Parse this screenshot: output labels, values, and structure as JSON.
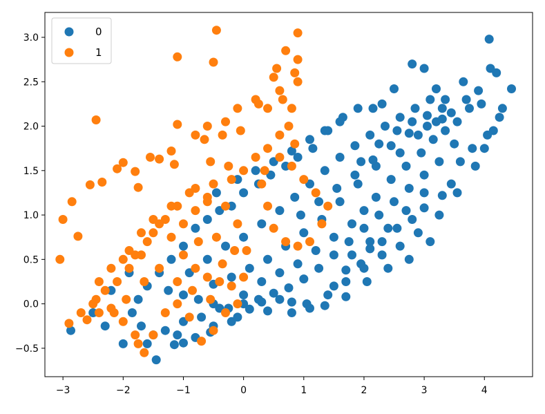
{
  "chart_data": {
    "type": "scatter",
    "title": "",
    "xlabel": "",
    "ylabel": "",
    "xlim": [
      -3.3,
      4.8
    ],
    "ylim": [
      -0.82,
      3.28
    ],
    "xticks": [
      -3,
      -2,
      -1,
      0,
      1,
      2,
      3,
      4
    ],
    "yticks": [
      -0.5,
      0.0,
      0.5,
      1.0,
      1.5,
      2.0,
      2.5,
      3.0
    ],
    "xtick_labels": [
      "−3",
      "−2",
      "−1",
      "0",
      "1",
      "2",
      "3",
      "4"
    ],
    "ytick_labels": [
      "−0.5",
      "0.0",
      "0.5",
      "1.0",
      "1.5",
      "2.0",
      "2.5",
      "3.0"
    ],
    "legend": {
      "placement": "top-left"
    },
    "grid": false,
    "series": [
      {
        "name": "0",
        "color": "#1f77b4",
        "points": [
          [
            -2.87,
            -0.3
          ],
          [
            -1.45,
            -0.63
          ],
          [
            -1.15,
            -0.46
          ],
          [
            -1.0,
            -0.44
          ],
          [
            -0.8,
            -0.38
          ],
          [
            -0.55,
            -0.32
          ],
          [
            -0.2,
            -0.2
          ],
          [
            0.1,
            -0.06
          ],
          [
            0.3,
            0.02
          ],
          [
            0.6,
            0.05
          ],
          [
            0.8,
            0.02
          ],
          [
            1.05,
            0.0
          ],
          [
            1.5,
            0.2
          ],
          [
            1.7,
            0.38
          ],
          [
            1.95,
            0.45
          ],
          [
            2.1,
            0.62
          ],
          [
            2.3,
            0.7
          ],
          [
            2.55,
            0.85
          ],
          [
            2.8,
            0.95
          ],
          [
            3.0,
            1.08
          ],
          [
            3.3,
            1.22
          ],
          [
            3.45,
            1.35
          ],
          [
            3.6,
            1.6
          ],
          [
            3.8,
            1.75
          ],
          [
            4.05,
            1.9
          ],
          [
            4.25,
            2.1
          ],
          [
            4.45,
            2.42
          ],
          [
            4.08,
            2.98
          ],
          [
            4.1,
            2.65
          ],
          [
            4.2,
            2.6
          ],
          [
            3.95,
            2.25
          ],
          [
            3.65,
            2.5
          ],
          [
            3.2,
            2.42
          ],
          [
            3.0,
            2.65
          ],
          [
            2.8,
            2.7
          ],
          [
            2.5,
            2.42
          ],
          [
            2.3,
            2.25
          ],
          [
            2.15,
            2.2
          ],
          [
            1.9,
            2.2
          ],
          [
            1.65,
            2.1
          ],
          [
            1.4,
            1.95
          ],
          [
            1.15,
            1.75
          ],
          [
            0.9,
            1.65
          ],
          [
            0.7,
            1.55
          ],
          [
            0.45,
            1.45
          ],
          [
            0.25,
            1.35
          ],
          [
            0.0,
            1.25
          ],
          [
            -0.2,
            1.1
          ],
          [
            -0.4,
            1.05
          ],
          [
            -0.6,
            0.95
          ],
          [
            -0.8,
            0.85
          ],
          [
            -1.0,
            0.65
          ],
          [
            -1.2,
            0.5
          ],
          [
            -1.4,
            0.35
          ],
          [
            -1.6,
            0.2
          ],
          [
            -1.75,
            0.05
          ],
          [
            -1.85,
            -0.1
          ],
          [
            -1.7,
            -0.25
          ],
          [
            -1.5,
            -0.35
          ],
          [
            -1.3,
            -0.3
          ],
          [
            -1.0,
            -0.2
          ],
          [
            -0.7,
            -0.15
          ],
          [
            -0.4,
            -0.05
          ],
          [
            0.0,
            0.1
          ],
          [
            0.3,
            0.25
          ],
          [
            0.6,
            0.35
          ],
          [
            0.9,
            0.45
          ],
          [
            1.2,
            0.6
          ],
          [
            1.5,
            0.75
          ],
          [
            1.8,
            0.9
          ],
          [
            2.0,
            1.05
          ],
          [
            2.2,
            1.2
          ],
          [
            2.45,
            1.4
          ],
          [
            2.7,
            1.55
          ],
          [
            2.95,
            1.7
          ],
          [
            3.15,
            1.85
          ],
          [
            3.35,
            1.95
          ],
          [
            3.55,
            2.05
          ],
          [
            3.75,
            2.2
          ],
          [
            3.5,
            1.8
          ],
          [
            3.25,
            1.6
          ],
          [
            3.0,
            1.45
          ],
          [
            2.75,
            1.3
          ],
          [
            2.5,
            1.15
          ],
          [
            2.25,
            1.0
          ],
          [
            2.0,
            0.85
          ],
          [
            1.75,
            0.7
          ],
          [
            1.5,
            0.55
          ],
          [
            1.25,
            0.4
          ],
          [
            1.0,
            0.28
          ],
          [
            0.75,
            0.18
          ],
          [
            0.5,
            0.12
          ],
          [
            0.25,
            0.05
          ],
          [
            0.0,
            0.0
          ],
          [
            -0.25,
            -0.05
          ],
          [
            -0.5,
            0.0
          ],
          [
            -0.75,
            0.05
          ],
          [
            -1.0,
            0.1
          ],
          [
            -1.25,
            0.15
          ],
          [
            -0.9,
            0.35
          ],
          [
            -0.6,
            0.5
          ],
          [
            -0.3,
            0.65
          ],
          [
            0.0,
            0.75
          ],
          [
            0.3,
            0.9
          ],
          [
            0.6,
            1.05
          ],
          [
            0.85,
            1.2
          ],
          [
            1.1,
            1.35
          ],
          [
            1.35,
            1.5
          ],
          [
            1.6,
            1.65
          ],
          [
            1.85,
            1.78
          ],
          [
            2.1,
            1.9
          ],
          [
            2.35,
            2.0
          ],
          [
            2.6,
            2.1
          ],
          [
            2.85,
            2.2
          ],
          [
            3.1,
            2.3
          ],
          [
            3.35,
            2.3
          ],
          [
            2.2,
            1.55
          ],
          [
            1.9,
            1.35
          ],
          [
            1.6,
            1.15
          ],
          [
            1.3,
            0.95
          ],
          [
            1.0,
            0.8
          ],
          [
            0.7,
            0.65
          ],
          [
            0.4,
            0.5
          ],
          [
            0.1,
            0.4
          ],
          [
            -0.2,
            0.3
          ],
          [
            -0.5,
            0.22
          ],
          [
            2.6,
            1.7
          ],
          [
            2.9,
            1.9
          ],
          [
            3.2,
            2.05
          ],
          [
            3.45,
            2.15
          ],
          [
            3.7,
            2.3
          ],
          [
            3.9,
            2.4
          ],
          [
            3.55,
            1.25
          ],
          [
            3.25,
            1.0
          ],
          [
            2.9,
            0.8
          ],
          [
            2.6,
            0.65
          ],
          [
            2.3,
            0.55
          ],
          [
            2.0,
            0.4
          ],
          [
            1.7,
            0.25
          ],
          [
            1.4,
            0.1
          ],
          [
            1.1,
            -0.05
          ],
          [
            0.8,
            -0.1
          ],
          [
            0.4,
            -0.08
          ],
          [
            -0.1,
            -0.15
          ],
          [
            -0.5,
            -0.25
          ],
          [
            -1.1,
            -0.35
          ],
          [
            -1.6,
            -0.45
          ],
          [
            -2.0,
            -0.45
          ],
          [
            -2.3,
            -0.25
          ],
          [
            -2.5,
            -0.1
          ],
          [
            -2.2,
            0.15
          ],
          [
            -1.9,
            0.35
          ],
          [
            -0.45,
            1.25
          ],
          [
            -0.1,
            1.4
          ],
          [
            0.2,
            1.5
          ],
          [
            0.5,
            1.6
          ],
          [
            0.8,
            1.72
          ],
          [
            1.1,
            1.85
          ],
          [
            1.35,
            1.95
          ],
          [
            1.6,
            2.05
          ],
          [
            3.85,
            1.55
          ],
          [
            4.0,
            1.75
          ],
          [
            4.15,
            1.95
          ],
          [
            4.3,
            2.2
          ],
          [
            3.1,
            0.7
          ],
          [
            2.75,
            0.5
          ],
          [
            2.4,
            0.4
          ],
          [
            2.05,
            0.25
          ],
          [
            1.7,
            0.08
          ],
          [
            1.35,
            -0.02
          ],
          [
            1.95,
            1.6
          ],
          [
            2.25,
            1.8
          ],
          [
            2.55,
            1.95
          ],
          [
            2.8,
            2.05
          ],
          [
            3.05,
            2.12
          ],
          [
            3.3,
            2.2
          ],
          [
            3.0,
            1.25
          ],
          [
            2.7,
            1.05
          ],
          [
            2.4,
            0.85
          ],
          [
            2.1,
            0.7
          ],
          [
            1.8,
            0.55
          ],
          [
            0.95,
            1.0
          ],
          [
            1.25,
            1.15
          ],
          [
            1.55,
            1.3
          ],
          [
            1.85,
            1.45
          ],
          [
            2.15,
            1.62
          ],
          [
            2.45,
            1.78
          ],
          [
            2.75,
            1.92
          ],
          [
            3.05,
            2.0
          ],
          [
            3.3,
            2.08
          ]
        ]
      },
      {
        "name": "1",
        "color": "#ff7f0e",
        "points": [
          [
            -3.05,
            0.5
          ],
          [
            -3.0,
            0.95
          ],
          [
            -2.85,
            1.15
          ],
          [
            -2.75,
            0.76
          ],
          [
            -2.55,
            1.34
          ],
          [
            -2.45,
            2.07
          ],
          [
            -2.35,
            1.37
          ],
          [
            -2.1,
            1.52
          ],
          [
            -2.0,
            1.59
          ],
          [
            -1.8,
            1.49
          ],
          [
            -1.75,
            1.31
          ],
          [
            -1.55,
            1.65
          ],
          [
            -1.4,
            1.63
          ],
          [
            -1.2,
            1.72
          ],
          [
            -1.1,
            2.02
          ],
          [
            -1.1,
            2.78
          ],
          [
            -1.15,
            1.57
          ],
          [
            -0.45,
            3.08
          ],
          [
            -0.5,
            2.72
          ],
          [
            -0.8,
            1.9
          ],
          [
            -0.6,
            2.0
          ],
          [
            -0.3,
            2.05
          ],
          [
            -0.1,
            2.2
          ],
          [
            0.2,
            2.3
          ],
          [
            0.5,
            2.55
          ],
          [
            0.55,
            2.65
          ],
          [
            0.7,
            2.85
          ],
          [
            0.9,
            3.05
          ],
          [
            0.9,
            2.5
          ],
          [
            0.8,
            2.2
          ],
          [
            0.6,
            1.9
          ],
          [
            0.4,
            1.75
          ],
          [
            0.2,
            1.65
          ],
          [
            0.0,
            1.5
          ],
          [
            -0.2,
            1.4
          ],
          [
            -0.5,
            1.35
          ],
          [
            -0.8,
            1.3
          ],
          [
            -1.1,
            1.1
          ],
          [
            -1.3,
            0.95
          ],
          [
            -1.5,
            0.8
          ],
          [
            -1.7,
            0.55
          ],
          [
            -1.9,
            0.4
          ],
          [
            -2.1,
            0.25
          ],
          [
            -2.3,
            0.15
          ],
          [
            -2.5,
            0.0
          ],
          [
            -2.7,
            -0.1
          ],
          [
            -2.9,
            -0.22
          ],
          [
            -2.6,
            -0.18
          ],
          [
            -2.4,
            -0.1
          ],
          [
            -2.2,
            -0.05
          ],
          [
            -2.0,
            -0.2
          ],
          [
            -1.8,
            -0.35
          ],
          [
            -1.65,
            -0.55
          ],
          [
            -1.5,
            -0.35
          ],
          [
            -1.3,
            -0.1
          ],
          [
            -1.1,
            0.0
          ],
          [
            -0.9,
            -0.15
          ],
          [
            -0.7,
            -0.42
          ],
          [
            -0.5,
            -0.3
          ],
          [
            -0.3,
            -0.1
          ],
          [
            -0.1,
            0.0
          ],
          [
            0.0,
            0.3
          ],
          [
            0.05,
            0.6
          ],
          [
            -0.1,
            0.9
          ],
          [
            -0.3,
            1.1
          ],
          [
            -0.6,
            1.2
          ],
          [
            -0.9,
            1.25
          ],
          [
            -1.2,
            1.1
          ],
          [
            -1.4,
            0.9
          ],
          [
            -1.6,
            0.7
          ],
          [
            -1.8,
            0.55
          ],
          [
            -2.0,
            0.5
          ],
          [
            -2.2,
            0.4
          ],
          [
            -2.4,
            0.25
          ],
          [
            -1.9,
            0.6
          ],
          [
            -1.7,
            0.8
          ],
          [
            -1.5,
            0.95
          ],
          [
            -1.2,
            0.75
          ],
          [
            -1.0,
            0.55
          ],
          [
            -0.8,
            0.4
          ],
          [
            -0.6,
            0.3
          ],
          [
            -0.4,
            0.25
          ],
          [
            -0.2,
            0.2
          ],
          [
            -1.0,
            0.9
          ],
          [
            -0.8,
            1.05
          ],
          [
            -0.6,
            1.15
          ],
          [
            0.4,
            1.1
          ],
          [
            0.5,
            0.85
          ],
          [
            0.7,
            0.7
          ],
          [
            0.9,
            0.65
          ],
          [
            1.1,
            0.7
          ],
          [
            1.3,
            0.9
          ],
          [
            1.4,
            1.1
          ],
          [
            1.2,
            1.25
          ],
          [
            1.0,
            1.4
          ],
          [
            0.8,
            1.55
          ],
          [
            0.6,
            1.65
          ],
          [
            0.35,
            1.5
          ],
          [
            0.3,
            1.35
          ],
          [
            0.85,
            1.8
          ],
          [
            0.75,
            2.0
          ],
          [
            0.65,
            2.3
          ],
          [
            0.85,
            2.6
          ],
          [
            0.9,
            2.75
          ],
          [
            0.6,
            2.4
          ],
          [
            0.4,
            2.2
          ],
          [
            0.25,
            2.25
          ],
          [
            -0.05,
            1.95
          ],
          [
            -0.35,
            1.9
          ],
          [
            -0.65,
            1.85
          ],
          [
            -0.55,
            1.6
          ],
          [
            -0.25,
            1.55
          ],
          [
            -1.65,
            0.25
          ],
          [
            -1.4,
            0.4
          ],
          [
            -1.1,
            0.25
          ],
          [
            -0.85,
            0.15
          ],
          [
            -0.55,
            0.05
          ],
          [
            -1.95,
            0.05
          ],
          [
            -2.15,
            -0.1
          ],
          [
            -2.45,
            0.05
          ],
          [
            -1.75,
            -0.45
          ],
          [
            -0.35,
            0.45
          ],
          [
            -0.15,
            0.6
          ],
          [
            -0.45,
            0.75
          ],
          [
            -0.75,
            0.7
          ]
        ]
      }
    ]
  }
}
